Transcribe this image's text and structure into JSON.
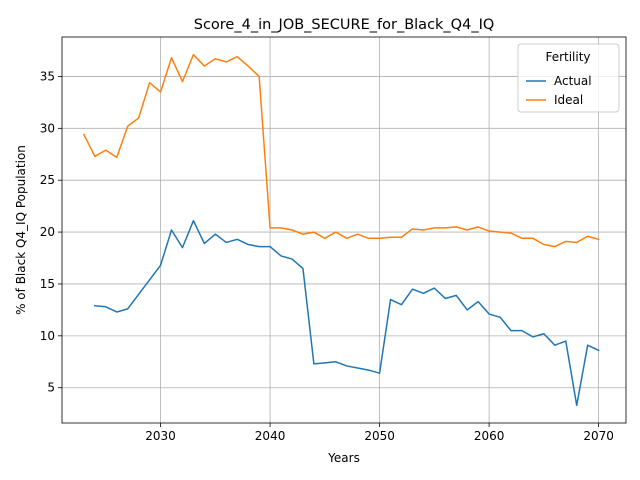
{
  "chart_data": {
    "type": "line",
    "title": "Score_4_in_JOB_SECURE_for_Black_Q4_IQ",
    "xlabel": "Years",
    "ylabel": "% of Black Q4_IQ Population",
    "xlim": [
      2021,
      2072.5
    ],
    "ylim": [
      1.6,
      38.8
    ],
    "xticks": [
      2030,
      2040,
      2050,
      2060,
      2070
    ],
    "yticks": [
      5,
      10,
      15,
      20,
      25,
      30,
      35
    ],
    "grid": true,
    "legend": {
      "title": "Fertility",
      "placement": "top-right"
    },
    "series": [
      {
        "name": "Actual",
        "color": "#1f77b4",
        "x": [
          2024,
          2025,
          2026,
          2027,
          2028,
          2029,
          2030,
          2031,
          2032,
          2033,
          2034,
          2035,
          2036,
          2037,
          2038,
          2039,
          2040,
          2041,
          2042,
          2043,
          2044,
          2045,
          2046,
          2047,
          2048,
          2049,
          2050,
          2051,
          2052,
          2053,
          2054,
          2055,
          2056,
          2057,
          2058,
          2059,
          2060,
          2061,
          2062,
          2063,
          2064,
          2065,
          2066,
          2067,
          2068,
          2069,
          2070
        ],
        "values": [
          12.9,
          12.8,
          12.3,
          12.6,
          14.0,
          15.4,
          16.8,
          20.2,
          18.5,
          21.1,
          18.9,
          19.8,
          19.0,
          19.3,
          18.8,
          18.6,
          18.6,
          17.7,
          17.4,
          16.5,
          7.3,
          7.4,
          7.5,
          7.1,
          6.9,
          6.7,
          6.4,
          13.5,
          13.0,
          14.5,
          14.1,
          14.6,
          13.6,
          13.9,
          12.5,
          13.3,
          12.1,
          11.8,
          10.5,
          10.5,
          9.9,
          10.2,
          9.1,
          9.5,
          3.3,
          9.1,
          8.6
        ]
      },
      {
        "name": "Ideal",
        "color": "#ff7f0e",
        "x": [
          2023,
          2024,
          2025,
          2026,
          2027,
          2028,
          2029,
          2030,
          2031,
          2032,
          2033,
          2034,
          2035,
          2036,
          2037,
          2038,
          2039,
          2040,
          2041,
          2042,
          2043,
          2044,
          2045,
          2046,
          2047,
          2048,
          2049,
          2050,
          2051,
          2052,
          2053,
          2054,
          2055,
          2056,
          2057,
          2058,
          2059,
          2060,
          2061,
          2062,
          2063,
          2064,
          2065,
          2066,
          2067,
          2068,
          2069,
          2070
        ],
        "values": [
          29.4,
          27.3,
          27.9,
          27.2,
          30.2,
          31.0,
          34.4,
          33.5,
          36.8,
          34.5,
          37.1,
          36.0,
          36.7,
          36.4,
          36.9,
          36.0,
          35.0,
          20.4,
          20.4,
          20.2,
          19.8,
          20.0,
          19.4,
          20.0,
          19.4,
          19.8,
          19.4,
          19.4,
          19.5,
          19.5,
          20.3,
          20.2,
          20.4,
          20.4,
          20.5,
          20.2,
          20.5,
          20.1,
          20.0,
          19.9,
          19.4,
          19.4,
          18.8,
          18.6,
          19.1,
          19.0,
          19.6,
          19.3
        ]
      }
    ]
  }
}
